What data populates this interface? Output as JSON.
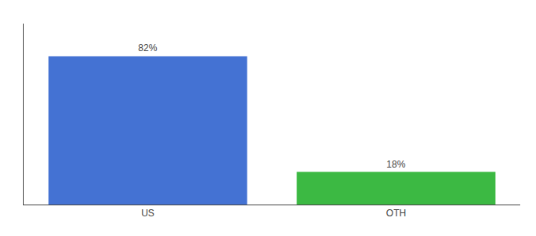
{
  "chart_data": {
    "type": "bar",
    "categories": [
      "US",
      "OTH"
    ],
    "values": [
      82,
      18
    ],
    "value_labels": [
      "82%",
      "18%"
    ],
    "data_labels": true,
    "colors": [
      "#4472D3",
      "#3CB943"
    ],
    "ylim": [
      0,
      100
    ],
    "tick_labels": "x",
    "grid": false
  }
}
